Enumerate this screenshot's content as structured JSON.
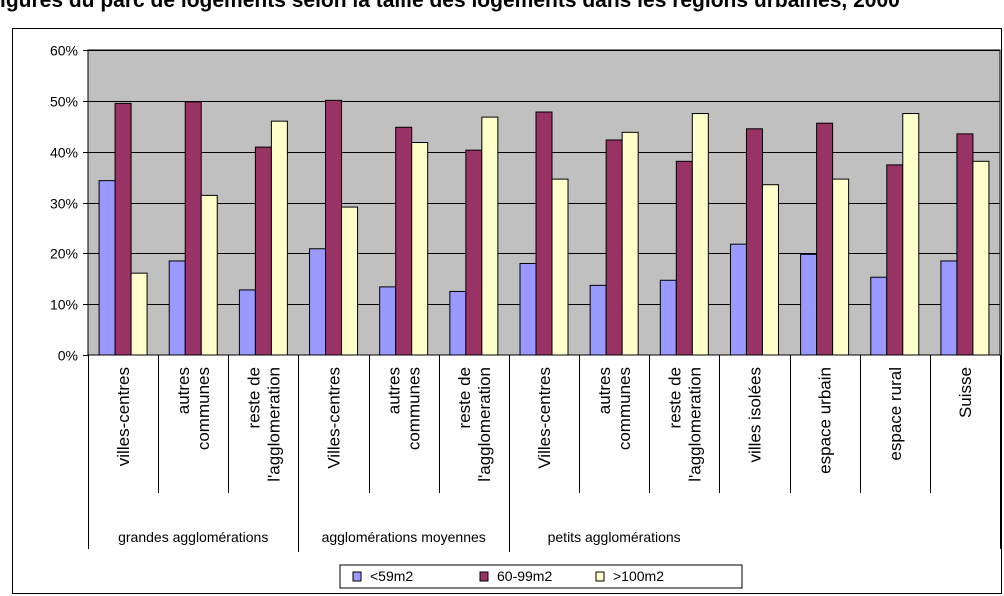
{
  "title": "igures du parc de logements selon la taille des logements dans les régions urbaines, 2000",
  "chart_data": {
    "type": "bar",
    "y_ticks": [
      "0%",
      "10%",
      "20%",
      "30%",
      "40%",
      "50%",
      "60%"
    ],
    "ylim": [
      0,
      60
    ],
    "grid": true,
    "legend_position": "bottom",
    "categories": [
      [
        "villes-centres"
      ],
      [
        "autres",
        "communes"
      ],
      [
        "reste de",
        "l'agglomeration"
      ],
      [
        "Villes-centres"
      ],
      [
        "autres",
        "communes"
      ],
      [
        "reste de",
        "l'agglomeration"
      ],
      [
        "Villes-centres"
      ],
      [
        "autres",
        "communes"
      ],
      [
        "reste de",
        "l'agglomeration"
      ],
      [
        "villes isolées"
      ],
      [
        "espace urbain"
      ],
      [
        "espace rural"
      ],
      [
        "Suisse"
      ]
    ],
    "groups": [
      {
        "label": "grandes agglomérations",
        "start": 0,
        "span": 3
      },
      {
        "label": "agglomérations moyennes",
        "start": 3,
        "span": 3
      },
      {
        "label": "petits agglomérations",
        "start": 6,
        "span": 3
      }
    ],
    "series": [
      {
        "name": "<59m2",
        "color": "#9999FF",
        "values": [
          34.3,
          18.5,
          12.8,
          20.9,
          13.4,
          12.5,
          18.0,
          13.7,
          14.7,
          21.8,
          19.8,
          15.3,
          18.5
        ]
      },
      {
        "name": "60-99m2",
        "color": "#993366",
        "values": [
          49.5,
          49.8,
          40.9,
          50.1,
          44.8,
          40.3,
          47.8,
          42.3,
          38.1,
          44.5,
          45.6,
          37.4,
          43.5
        ]
      },
      {
        "name": ">100m2",
        "color": "#FFFFCC",
        "values": [
          16.1,
          31.4,
          46.0,
          29.1,
          41.8,
          46.8,
          34.6,
          43.8,
          47.5,
          33.5,
          34.6,
          47.5,
          38.1
        ]
      }
    ]
  }
}
